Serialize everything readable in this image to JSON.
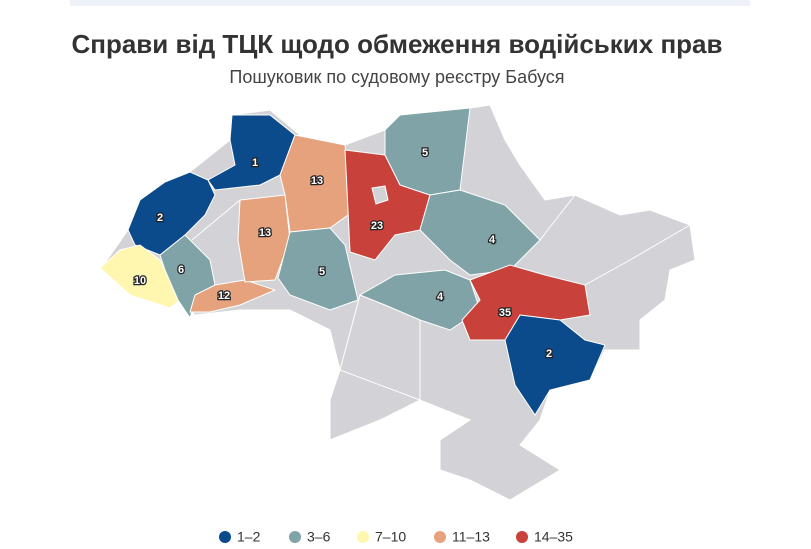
{
  "title": "Справи від ТЦК щодо обмеження водійських прав",
  "subtitle": "Пошуковик по судовому реєстру Бабуся",
  "regions": [
    {
      "value": 1,
      "color": "#0b4a8b"
    },
    {
      "value": 2,
      "color": "#0b4a8b"
    },
    {
      "value": 10,
      "color": "#fff6b0"
    },
    {
      "value": 6,
      "color": "#7fa3a6"
    },
    {
      "value": 12,
      "color": "#e6a27c"
    },
    {
      "value": 13,
      "color": "#e6a27c"
    },
    {
      "value": 13,
      "color": "#e6a27c"
    },
    {
      "value": 5,
      "color": "#7fa3a6"
    },
    {
      "value": 23,
      "color": "#c8423b"
    },
    {
      "value": 5,
      "color": "#7fa3a6"
    },
    {
      "value": 4,
      "color": "#7fa3a6"
    },
    {
      "value": 4,
      "color": "#7fa3a6"
    },
    {
      "value": 35,
      "color": "#c8423b"
    },
    {
      "value": 2,
      "color": "#0b4a8b"
    }
  ],
  "legend": [
    {
      "label": "1–2",
      "color": "#0b4a8b"
    },
    {
      "label": "3–6",
      "color": "#7fa3a6"
    },
    {
      "label": "7–10",
      "color": "#fff6b0"
    },
    {
      "label": "11–13",
      "color": "#e6a27c"
    },
    {
      "label": "14–35",
      "color": "#c8423b"
    }
  ]
}
